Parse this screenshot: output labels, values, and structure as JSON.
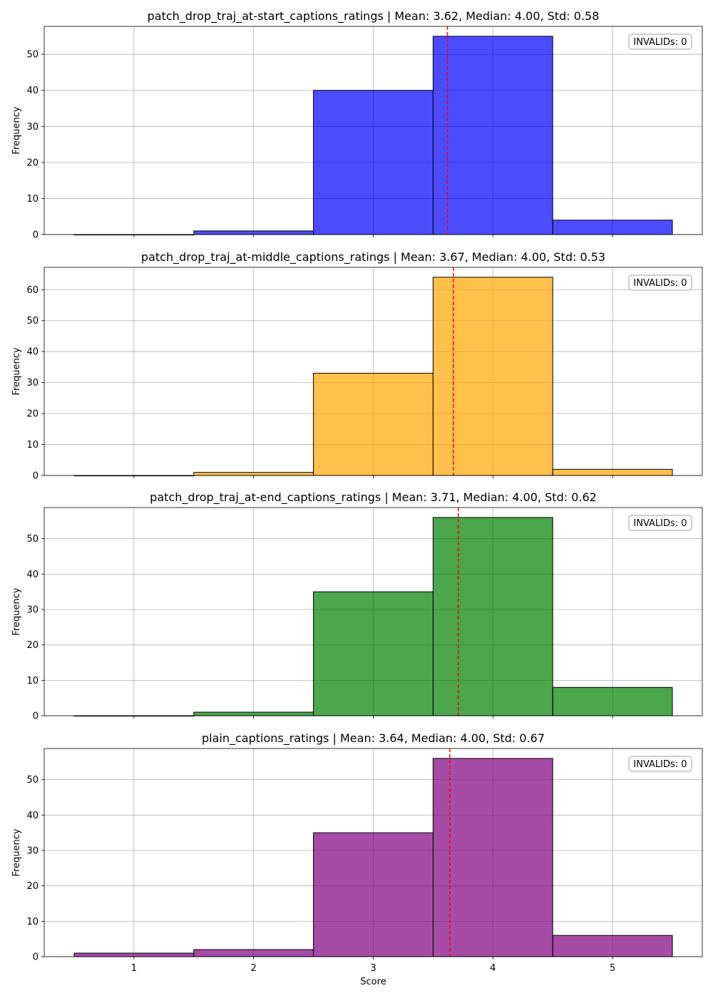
{
  "figure": {
    "xlabel": "Score",
    "xticks": [
      1,
      2,
      3,
      4,
      5
    ]
  },
  "chart_data": [
    {
      "type": "bar",
      "title": "patch_drop_traj_at-start_captions_ratings | Mean: 3.62, Median: 4.00, Std: 0.58",
      "xlabel": "",
      "ylabel": "Frequency",
      "categories": [
        1,
        2,
        3,
        4,
        5
      ],
      "values": [
        0,
        1,
        40,
        55,
        4
      ],
      "mean": 3.62,
      "color": "#0000ff",
      "ylim": [
        0,
        57.75
      ],
      "yticks": [
        0,
        10,
        20,
        30,
        40,
        50
      ],
      "annotation": "INVALIDs: 0",
      "grid": true
    },
    {
      "type": "bar",
      "title": "patch_drop_traj_at-middle_captions_ratings | Mean: 3.67, Median: 4.00, Std: 0.53",
      "xlabel": "",
      "ylabel": "Frequency",
      "categories": [
        1,
        2,
        3,
        4,
        5
      ],
      "values": [
        0,
        1,
        33,
        64,
        2
      ],
      "mean": 3.67,
      "color": "#ffa500",
      "ylim": [
        0,
        67.2
      ],
      "yticks": [
        0,
        10,
        20,
        30,
        40,
        50,
        60
      ],
      "annotation": "INVALIDs: 0",
      "grid": true
    },
    {
      "type": "bar",
      "title": "patch_drop_traj_at-end_captions_ratings | Mean: 3.71, Median: 4.00, Std: 0.62",
      "xlabel": "",
      "ylabel": "Frequency",
      "categories": [
        1,
        2,
        3,
        4,
        5
      ],
      "values": [
        0,
        1,
        35,
        56,
        8
      ],
      "mean": 3.71,
      "color": "#008000",
      "ylim": [
        0,
        58.8
      ],
      "yticks": [
        0,
        10,
        20,
        30,
        40,
        50
      ],
      "annotation": "INVALIDs: 0",
      "grid": true
    },
    {
      "type": "bar",
      "title": "plain_captions_ratings | Mean: 3.64, Median: 4.00, Std: 0.67",
      "xlabel": "Score",
      "ylabel": "Frequency",
      "categories": [
        1,
        2,
        3,
        4,
        5
      ],
      "values": [
        1,
        2,
        35,
        56,
        6
      ],
      "mean": 3.64,
      "color": "#800080",
      "ylim": [
        0,
        58.8
      ],
      "yticks": [
        0,
        10,
        20,
        30,
        40,
        50
      ],
      "annotation": "INVALIDs: 0",
      "grid": true
    }
  ]
}
